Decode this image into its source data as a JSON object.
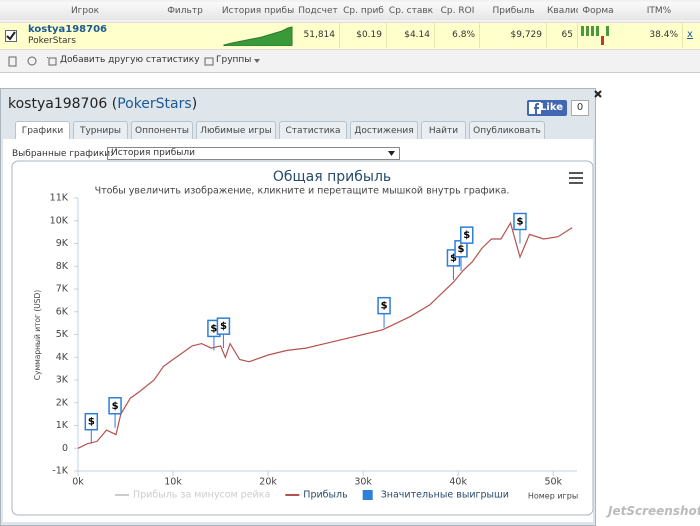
{
  "stats_table": {
    "headers": [
      "Игрок",
      "Фильтр",
      "История прибы",
      "Подсчет",
      "Ср. приб",
      "Ср. ставк",
      "Ср. ROI",
      "Прибыль",
      "Квалис",
      "Форма",
      "ITM%"
    ],
    "row": {
      "player": "kostya198706",
      "site": "PokerStars",
      "cells": [
        "51,814",
        "$0.19",
        "$4.14",
        "6.8%",
        "$9,729",
        "65"
      ],
      "itm": "38.4%",
      "remove": "x"
    }
  },
  "toolbar": {
    "add_stats": "Добавить другую статистику",
    "groups": "Группы"
  },
  "panel": {
    "title_parts": [
      "kostya198706 (",
      "PokerStars",
      ")"
    ],
    "like": "Like",
    "like_count": 0,
    "tabs": [
      "Графики",
      "Турниры",
      "Оппоненты",
      "Любимые игры",
      "Статистика",
      "Достижения",
      "Найти",
      "Опубликовать"
    ],
    "selector_label": "Выбранные графики:",
    "selector_value": "История прибыли"
  },
  "chart_data": {
    "type": "line",
    "title": "Общая прибыль",
    "subtitle": "Чтобы увеличить изображение, кликните и перетащите мышкой внутрь графика.",
    "y_label": "Суммарный итог (USD)",
    "x_label": "Номер игры",
    "xlim": [
      0,
      52500
    ],
    "ylim": [
      -1000,
      11000
    ],
    "xticks": [
      {
        "value": 0,
        "label": "0k"
      },
      {
        "value": 10000,
        "label": "10k"
      },
      {
        "value": 20000,
        "label": "20k"
      },
      {
        "value": 30000,
        "label": "30k"
      },
      {
        "value": 40000,
        "label": "40k"
      },
      {
        "value": 50000,
        "label": "50k"
      }
    ],
    "yticks": [
      {
        "value": -1000,
        "label": "-1K"
      },
      {
        "value": 0,
        "label": "0"
      },
      {
        "value": 1000,
        "label": "1K"
      },
      {
        "value": 2000,
        "label": "2K"
      },
      {
        "value": 3000,
        "label": "3K"
      },
      {
        "value": 4000,
        "label": "4K"
      },
      {
        "value": 5000,
        "label": "5K"
      },
      {
        "value": 6000,
        "label": "6K"
      },
      {
        "value": 7000,
        "label": "7K"
      },
      {
        "value": 8000,
        "label": "8K"
      },
      {
        "value": 9000,
        "label": "9K"
      },
      {
        "value": 10000,
        "label": "10K"
      },
      {
        "value": 11000,
        "label": "11K"
      }
    ],
    "grid": false,
    "series": [
      {
        "name": "Прибыль за минусом рейка",
        "color": "#cccccc",
        "visible": false,
        "x": [],
        "values": []
      },
      {
        "name": "Прибыль",
        "color": "#b5524e",
        "visible": true,
        "x": [
          0,
          1000,
          2000,
          3000,
          4000,
          4500,
          5500,
          6500,
          8000,
          9000,
          10000,
          11000,
          12000,
          13000,
          14000,
          15000,
          15500,
          16000,
          17000,
          18000,
          20000,
          22000,
          24000,
          26000,
          28000,
          30000,
          32000,
          33000,
          35000,
          37000,
          38500,
          39500,
          40500,
          41500,
          42500,
          43500,
          44500,
          45500,
          46500,
          47500,
          49000,
          50500,
          52000
        ],
        "values": [
          0,
          200,
          300,
          800,
          600,
          1500,
          2200,
          2500,
          3000,
          3600,
          3900,
          4200,
          4500,
          4600,
          4400,
          4500,
          4000,
          4600,
          3900,
          3800,
          4100,
          4300,
          4400,
          4600,
          4800,
          5000,
          5200,
          5400,
          5800,
          6300,
          6900,
          7300,
          7800,
          8200,
          8800,
          9200,
          9200,
          9900,
          8400,
          9400,
          9200,
          9300,
          9700
        ]
      },
      {
        "name": "Значительные выигрыши",
        "color": "#2f7ed8",
        "visible": true,
        "marker_label": "$",
        "x": [
          1400,
          3900,
          14300,
          15300,
          32200,
          39500,
          40300,
          40900,
          46500
        ],
        "values": [
          200,
          900,
          4300,
          4400,
          5300,
          7400,
          7800,
          8400,
          9000
        ]
      }
    ]
  },
  "watermark": "JetScreenshot"
}
